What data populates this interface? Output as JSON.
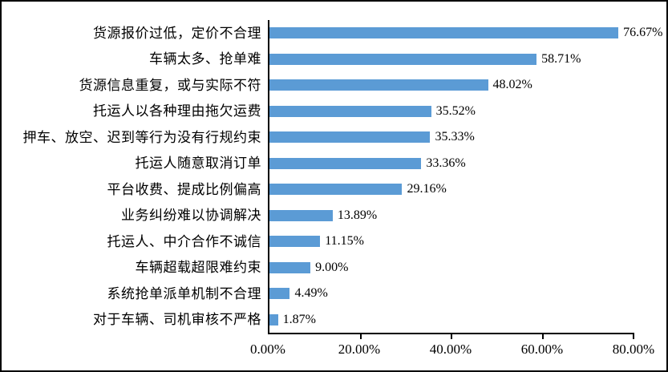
{
  "chart_data": {
    "type": "bar",
    "orientation": "horizontal",
    "title": "",
    "xlabel": "",
    "ylabel": "",
    "grid": false,
    "legend": "none",
    "xlim": [
      0,
      80
    ],
    "x_ticks": [
      0,
      20,
      40,
      60,
      80
    ],
    "x_tick_labels": [
      "0.00%",
      "20.00%",
      "40.00%",
      "60.00%",
      "80.00%"
    ],
    "bar_color": "#5B9BD5",
    "axis_color": "#000000",
    "categories": [
      "货源报价过低，定价不合理",
      "车辆太多、抢单难",
      "货源信息重复，或与实际不符",
      "托运人以各种理由拖欠运费",
      "押车、放空、迟到等行为没有行规约束",
      "托运人随意取消订单",
      "平台收费、提成比例偏高",
      "业务纠纷难以协调解决",
      "托运人、中介合作不诚信",
      "车辆超载超限难约束",
      "系统抢单派单机制不合理",
      "对于车辆、司机审核不严格"
    ],
    "values": [
      76.67,
      58.71,
      48.02,
      35.52,
      35.33,
      33.36,
      29.16,
      13.89,
      11.15,
      9.0,
      4.49,
      1.87
    ],
    "value_labels": [
      "76.67%",
      "58.71%",
      "48.02%",
      "35.52%",
      "35.33%",
      "33.36%",
      "29.16%",
      "13.89%",
      "11.15%",
      "9.00%",
      "4.49%",
      "1.87%"
    ]
  }
}
